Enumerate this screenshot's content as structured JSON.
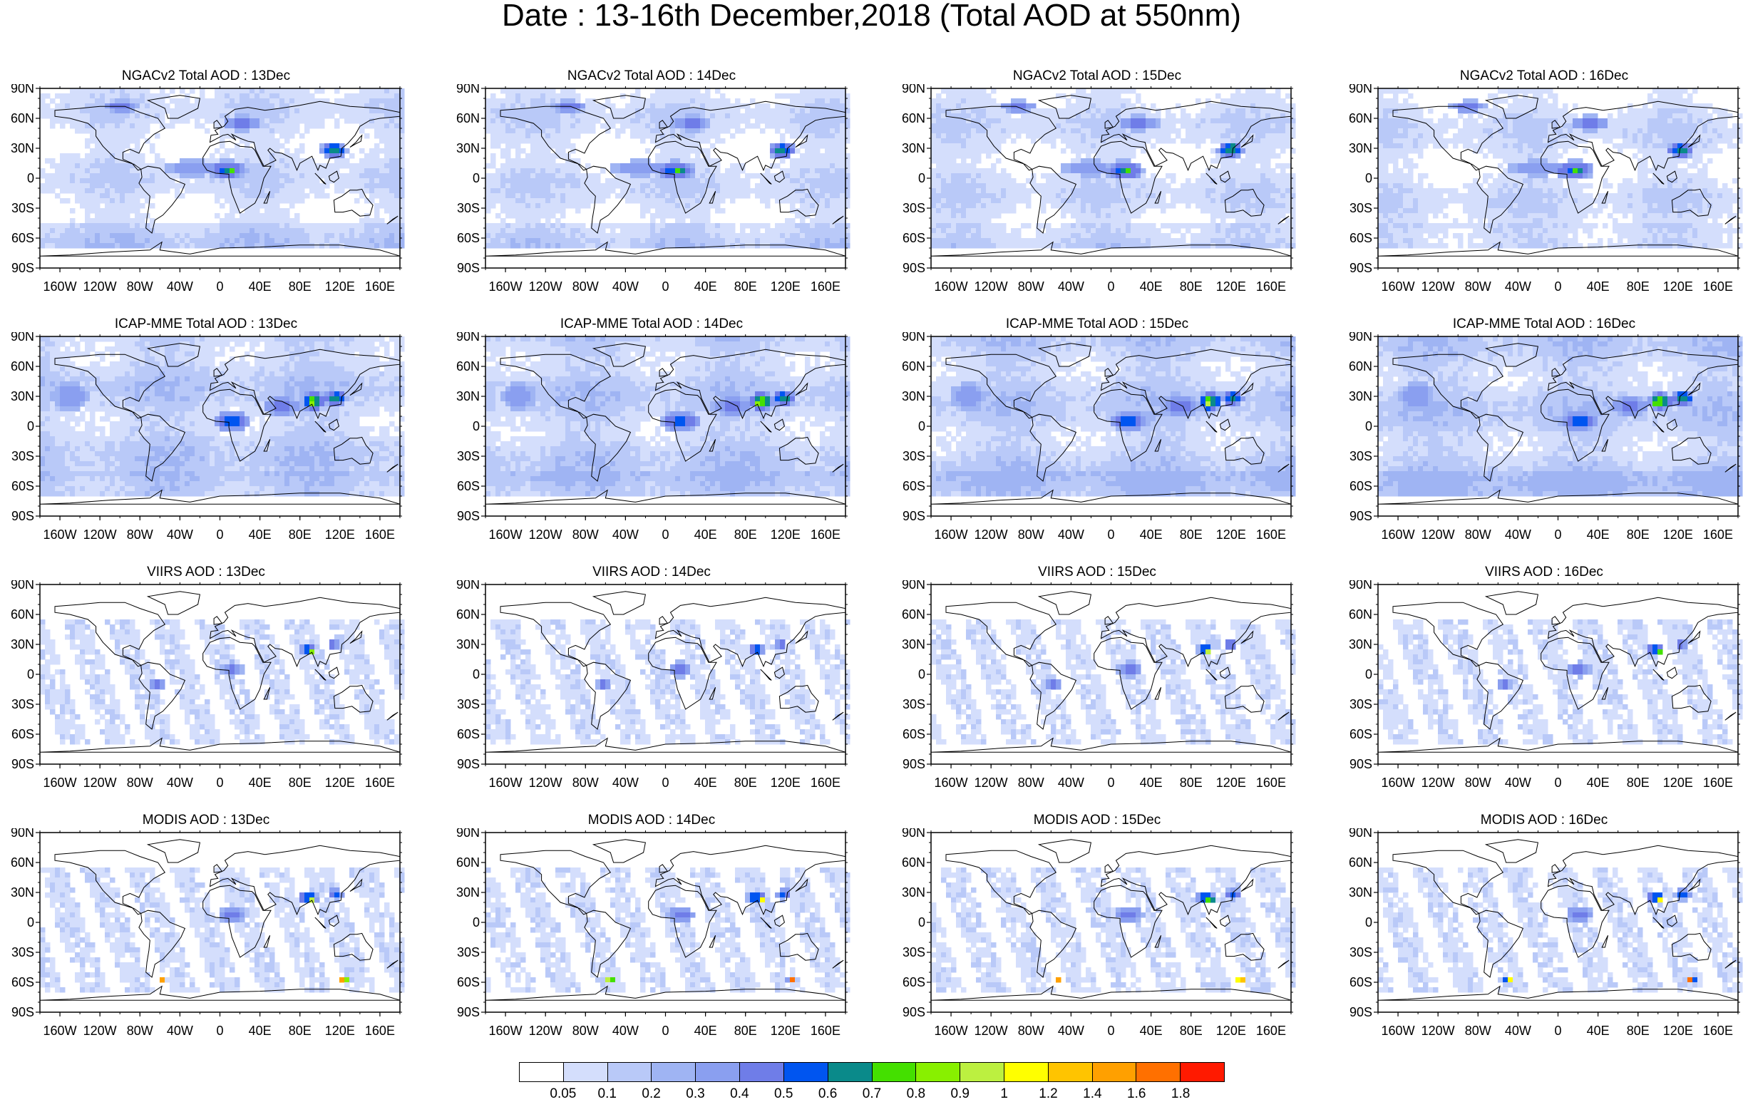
{
  "title": "Date : 13-16th December,2018 (Total AOD at 550nm)",
  "panels": [
    {
      "title": "NGACv2 Total AOD : 13Dec",
      "product": "ngac"
    },
    {
      "title": "NGACv2 Total AOD : 14Dec",
      "product": "ngac"
    },
    {
      "title": "NGACv2 Total AOD : 15Dec",
      "product": "ngac"
    },
    {
      "title": "NGACv2 Total AOD : 16Dec",
      "product": "ngac"
    },
    {
      "title": "ICAP-MME Total AOD : 13Dec",
      "product": "icap"
    },
    {
      "title": "ICAP-MME Total AOD : 14Dec",
      "product": "icap"
    },
    {
      "title": "ICAP-MME Total AOD : 15Dec",
      "product": "icap"
    },
    {
      "title": "ICAP-MME Total AOD : 16Dec",
      "product": "icap"
    },
    {
      "title": "VIIRS AOD : 13Dec",
      "product": "viirs"
    },
    {
      "title": "VIIRS AOD : 14Dec",
      "product": "viirs"
    },
    {
      "title": "VIIRS AOD : 15Dec",
      "product": "viirs"
    },
    {
      "title": "VIIRS AOD : 16Dec",
      "product": "viirs"
    },
    {
      "title": "MODIS AOD : 13Dec",
      "product": "modis"
    },
    {
      "title": "MODIS AOD : 14Dec",
      "product": "modis"
    },
    {
      "title": "MODIS AOD : 15Dec",
      "product": "modis"
    },
    {
      "title": "MODIS AOD : 16Dec",
      "product": "modis"
    }
  ],
  "lat_labels": [
    "90N",
    "60N",
    "30N",
    "0",
    "30S",
    "60S",
    "90S"
  ],
  "lon_labels": [
    "160W",
    "120W",
    "80W",
    "40W",
    "0",
    "40E",
    "80E",
    "120E",
    "160E"
  ],
  "lon_values": [
    -160,
    -120,
    -80,
    -40,
    0,
    40,
    80,
    120,
    160
  ],
  "colorbar": {
    "colors": [
      "#ffffff",
      "#d4defc",
      "#b9c9f8",
      "#9fb4f3",
      "#8a9ff0",
      "#6f7de8",
      "#0055f0",
      "#0a8a8a",
      "#44e000",
      "#88f000",
      "#bcf040",
      "#ffff00",
      "#ffc400",
      "#ffa000",
      "#ff7000",
      "#ff1a00"
    ],
    "labels": [
      "0.05",
      "0.1",
      "0.2",
      "0.3",
      "0.4",
      "0.5",
      "0.6",
      "0.7",
      "0.8",
      "0.9",
      "1",
      "1.2",
      "1.4",
      "1.6",
      "1.8"
    ]
  }
}
